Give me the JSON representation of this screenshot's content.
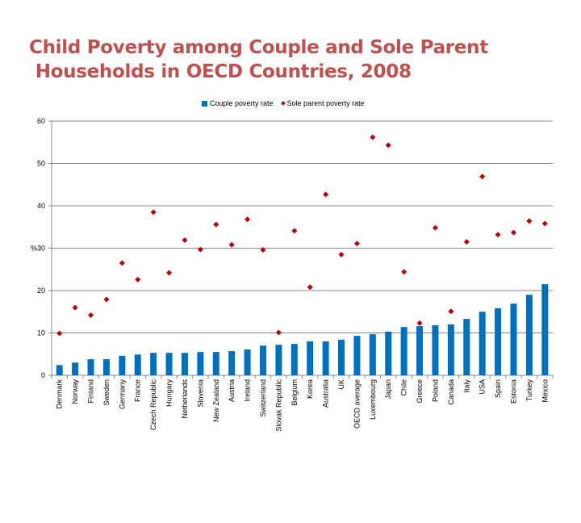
{
  "chart_data": {
    "type": "bar",
    "title": "Child Poverty among Couple and Sole Parent\n Households in OECD Countries, 2008",
    "ylabel": "%",
    "ylim": [
      0,
      60
    ],
    "yticks": [
      0,
      10,
      20,
      30,
      40,
      50,
      60
    ],
    "grid": true,
    "legend_placement": "top",
    "categories": [
      "Denmark",
      "Norway",
      "Finland",
      "Sweden",
      "Germany",
      "France",
      "Czech Republic",
      "Hungary",
      "Netherlands",
      "Slovenia",
      "New Zealand",
      "Austria",
      "Ireland",
      "Switzerland",
      "Slovak Republic",
      "Belgium",
      "Korea",
      "Australia",
      "UK",
      "OECD average",
      "Luxembourg",
      "Japan",
      "Chile",
      "Greece",
      "Poland",
      "Canada",
      "Italy",
      "USA",
      "Spain",
      "Estonia",
      "Turkey",
      "Mexico"
    ],
    "series": [
      {
        "name": "Couple poverty rate",
        "kind": "bar",
        "color": "#0070c0",
        "values": [
          2.4,
          3.0,
          3.8,
          3.8,
          4.6,
          4.9,
          5.3,
          5.3,
          5.3,
          5.5,
          5.5,
          5.7,
          6.1,
          7.0,
          7.2,
          7.4,
          8.0,
          8.0,
          8.4,
          9.3,
          9.7,
          10.3,
          11.4,
          11.6,
          11.8,
          12.0,
          13.3,
          15.0,
          15.8,
          16.9,
          19.0,
          21.5
        ]
      },
      {
        "name": "Sole parent poverty rate",
        "kind": "scatter",
        "marker": "diamond",
        "color": "#c00000",
        "values": [
          9.9,
          16.0,
          14.2,
          17.9,
          26.5,
          22.6,
          38.5,
          24.2,
          31.9,
          29.7,
          35.6,
          30.8,
          36.8,
          29.6,
          10.1,
          34.1,
          20.8,
          42.7,
          28.5,
          31.1,
          56.2,
          54.3,
          24.4,
          12.3,
          34.8,
          15.1,
          31.5,
          46.9,
          33.2,
          33.7,
          36.4,
          35.8
        ]
      }
    ]
  }
}
